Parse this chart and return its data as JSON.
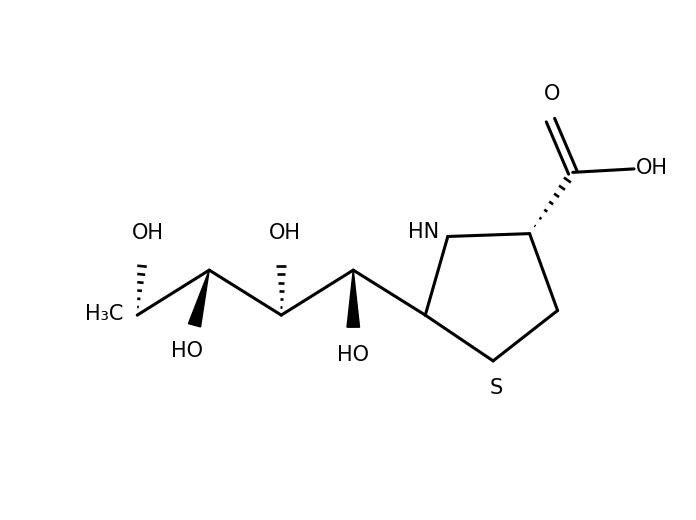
{
  "bg_color": "#ffffff",
  "line_color": "#000000",
  "lw": 2.2,
  "fs": 15,
  "figsize": [
    6.96,
    5.2
  ],
  "dpi": 100,
  "xlim": [
    0,
    10
  ],
  "ylim": [
    0.5,
    7.5
  ]
}
